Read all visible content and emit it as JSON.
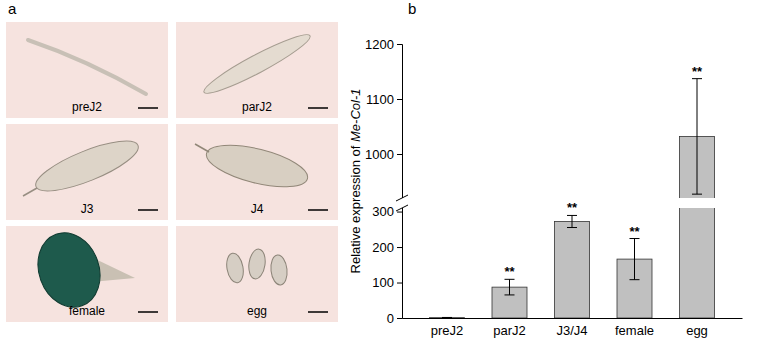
{
  "figure": {
    "panel_labels": [
      "a",
      "b"
    ],
    "images": [
      "preJ2",
      "parJ2",
      "J3",
      "J4",
      "female",
      "egg"
    ]
  },
  "chart_data": {
    "type": "bar",
    "categories": [
      "preJ2",
      "parJ2",
      "J3/J4",
      "female",
      "egg"
    ],
    "values": [
      1,
      87,
      272,
      166,
      1032
    ],
    "errors": [
      0.5,
      22,
      17,
      58,
      105
    ],
    "significance": [
      null,
      "**",
      "**",
      "**",
      "**"
    ],
    "y_label": "Relative expression of Me-Col-1",
    "y_label_italic": "Me-Col-1",
    "ylim": [
      0,
      1200
    ],
    "y_break": [
      310,
      920
    ],
    "yticks": [
      0,
      100,
      200,
      300,
      1000,
      1100,
      1200
    ],
    "color": "#c0c0c0"
  }
}
